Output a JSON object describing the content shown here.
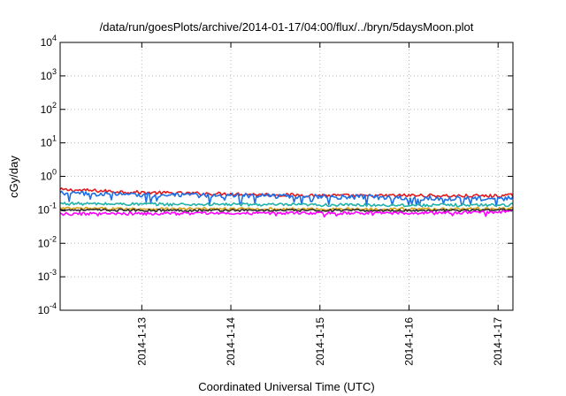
{
  "chart_data": {
    "type": "line",
    "title": "/data/run/goesPlots/archive/2014-01-17/04:00/flux/../bryn/5daysMoon.plot",
    "xlabel": "Coordinated Universal Time (UTC)",
    "ylabel": "cGy/day",
    "yscale": "log",
    "ylim": [
      0.0001,
      10000
    ],
    "yticks": [
      {
        "base": "10",
        "exp": "4",
        "value": 10000
      },
      {
        "base": "10",
        "exp": "3",
        "value": 1000
      },
      {
        "base": "10",
        "exp": "2",
        "value": 100
      },
      {
        "base": "10",
        "exp": "1",
        "value": 10
      },
      {
        "base": "10",
        "exp": "0",
        "value": 1
      },
      {
        "base": "10",
        "exp": "-1",
        "value": 0.1
      },
      {
        "base": "10",
        "exp": "-2",
        "value": 0.01
      },
      {
        "base": "10",
        "exp": "-3",
        "value": 0.001
      },
      {
        "base": "10",
        "exp": "-4",
        "value": 0.0001
      }
    ],
    "xlim": [
      "2014-01-12 02:00",
      "2014-01-17 04:00"
    ],
    "xticks": [
      "2014-1-13",
      "2014-1-14",
      "2014-1-15",
      "2014-1-16",
      "2014-1-17"
    ],
    "grid": true,
    "series": [
      {
        "color": "#e41a1c",
        "x": [
          "2014-01-12 02:00",
          "2014-01-12 12:00",
          "2014-01-13 00:00",
          "2014-01-13 12:00",
          "2014-01-14 00:00",
          "2014-01-14 12:00",
          "2014-01-15 00:00",
          "2014-01-15 12:00",
          "2014-01-16 00:00",
          "2014-01-16 12:00",
          "2014-01-17 00:00",
          "2014-01-17 04:00"
        ],
        "values": [
          0.4,
          0.37,
          0.33,
          0.31,
          0.3,
          0.28,
          0.27,
          0.26,
          0.27,
          0.26,
          0.26,
          0.27
        ]
      },
      {
        "color": "#1e6fe6",
        "x": [
          "2014-01-12 02:00",
          "2014-01-12 12:00",
          "2014-01-13 00:00",
          "2014-01-13 12:00",
          "2014-01-14 00:00",
          "2014-01-14 12:00",
          "2014-01-15 00:00",
          "2014-01-15 12:00",
          "2014-01-16 00:00",
          "2014-01-16 12:00",
          "2014-01-17 00:00",
          "2014-01-17 04:00"
        ],
        "values": [
          0.31,
          0.3,
          0.28,
          0.27,
          0.27,
          0.26,
          0.25,
          0.24,
          0.23,
          0.22,
          0.21,
          0.22
        ]
      },
      {
        "color": "#20b2aa",
        "x": [
          "2014-01-12 02:00",
          "2014-01-12 12:00",
          "2014-01-13 00:00",
          "2014-01-13 12:00",
          "2014-01-14 00:00",
          "2014-01-14 12:00",
          "2014-01-15 00:00",
          "2014-01-15 12:00",
          "2014-01-16 00:00",
          "2014-01-16 12:00",
          "2014-01-17 00:00",
          "2014-01-17 04:00"
        ],
        "values": [
          0.155,
          0.15,
          0.148,
          0.145,
          0.145,
          0.142,
          0.14,
          0.14,
          0.138,
          0.138,
          0.14,
          0.142
        ]
      },
      {
        "color": "#d4a017",
        "x": [
          "2014-01-12 02:00",
          "2014-01-12 12:00",
          "2014-01-13 00:00",
          "2014-01-13 12:00",
          "2014-01-14 00:00",
          "2014-01-14 12:00",
          "2014-01-15 00:00",
          "2014-01-15 12:00",
          "2014-01-16 00:00",
          "2014-01-16 12:00",
          "2014-01-17 00:00",
          "2014-01-17 04:00"
        ],
        "values": [
          0.11,
          0.108,
          0.107,
          0.106,
          0.106,
          0.105,
          0.105,
          0.105,
          0.106,
          0.106,
          0.108,
          0.11
        ]
      },
      {
        "color": "#333333",
        "x": [
          "2014-01-12 02:00",
          "2014-01-12 12:00",
          "2014-01-13 00:00",
          "2014-01-13 12:00",
          "2014-01-14 00:00",
          "2014-01-14 12:00",
          "2014-01-15 00:00",
          "2014-01-15 12:00",
          "2014-01-16 00:00",
          "2014-01-16 12:00",
          "2014-01-17 00:00",
          "2014-01-17 04:00"
        ],
        "values": [
          0.1,
          0.098,
          0.097,
          0.096,
          0.097,
          0.096,
          0.096,
          0.095,
          0.096,
          0.096,
          0.098,
          0.1
        ]
      },
      {
        "color": "#ff00ff",
        "x": [
          "2014-01-12 02:00",
          "2014-01-12 12:00",
          "2014-01-13 00:00",
          "2014-01-13 12:00",
          "2014-01-14 00:00",
          "2014-01-14 12:00",
          "2014-01-15 00:00",
          "2014-01-15 12:00",
          "2014-01-16 00:00",
          "2014-01-16 12:00",
          "2014-01-17 00:00",
          "2014-01-17 04:00"
        ],
        "values": [
          0.075,
          0.076,
          0.077,
          0.078,
          0.079,
          0.08,
          0.08,
          0.08,
          0.081,
          0.082,
          0.085,
          0.09
        ]
      }
    ]
  }
}
